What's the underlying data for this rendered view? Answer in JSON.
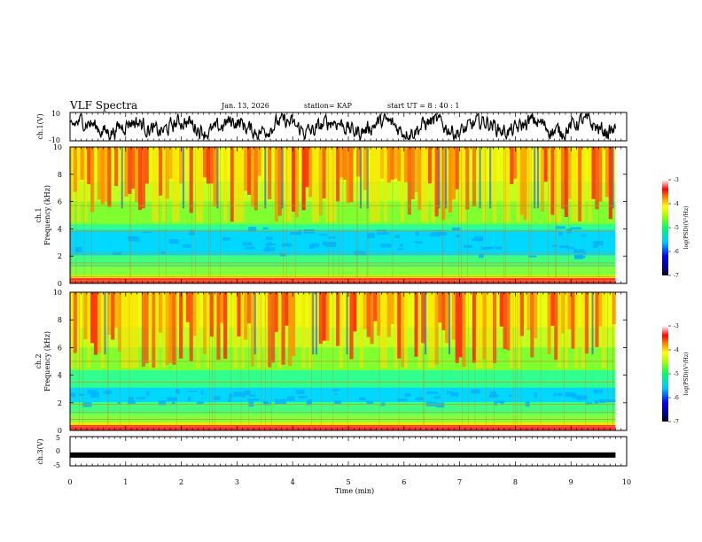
{
  "header": {
    "title": "VLF Spectra",
    "date": "Jan. 13, 2026",
    "station": "station= KAP",
    "start": "start  UT =  8 : 40 : 1"
  },
  "chart_data": [
    {
      "type": "line",
      "panel": "ch1-waveform",
      "ylabel": "ch.1(V)",
      "ylim": [
        -10,
        10
      ],
      "yticks": [
        "10",
        "-10"
      ],
      "xlim": [
        0,
        10
      ],
      "description_series": "noisy oscillation roughly between -6 and 8 V over 0–9.8 min"
    },
    {
      "type": "heatmap",
      "panel": "ch1-spectrogram",
      "ylabel_line1": "ch.1",
      "ylabel_line2": "Frequency (kHz)",
      "ylim": [
        0,
        10
      ],
      "yticks": [
        "0",
        "2",
        "4",
        "6",
        "8",
        "10"
      ],
      "xlim": [
        0,
        9.8
      ],
      "colorbar": {
        "label": "log(PSD)(V²/Hz)",
        "range": [
          -7,
          -3
        ],
        "ticks": [
          "-3",
          "-4",
          "-5",
          "-6",
          "-7"
        ]
      }
    },
    {
      "type": "heatmap",
      "panel": "ch2-spectrogram",
      "ylabel_line1": "ch.2",
      "ylabel_line2": "Frequency (kHz)",
      "ylim": [
        0,
        10
      ],
      "yticks": [
        "0",
        "2",
        "4",
        "6",
        "8",
        "10"
      ],
      "xlim": [
        0,
        9.8
      ],
      "colorbar": {
        "label": "log(PSD)(V²/Hz)",
        "range": [
          -7,
          -3
        ],
        "ticks": [
          "-3",
          "-4",
          "-5",
          "-6",
          "-7"
        ]
      }
    },
    {
      "type": "line",
      "panel": "ch3-waveform",
      "ylabel": "ch.3(V)",
      "ylim": [
        -5,
        5
      ],
      "yticks": [
        "5",
        "0",
        "-5"
      ],
      "level": -1.3,
      "xlim": [
        0,
        9.8
      ]
    }
  ],
  "xaxis": {
    "label": "Time (min)",
    "ticks": [
      "0",
      "1",
      "2",
      "3",
      "4",
      "5",
      "6",
      "7",
      "8",
      "9",
      "10"
    ]
  }
}
